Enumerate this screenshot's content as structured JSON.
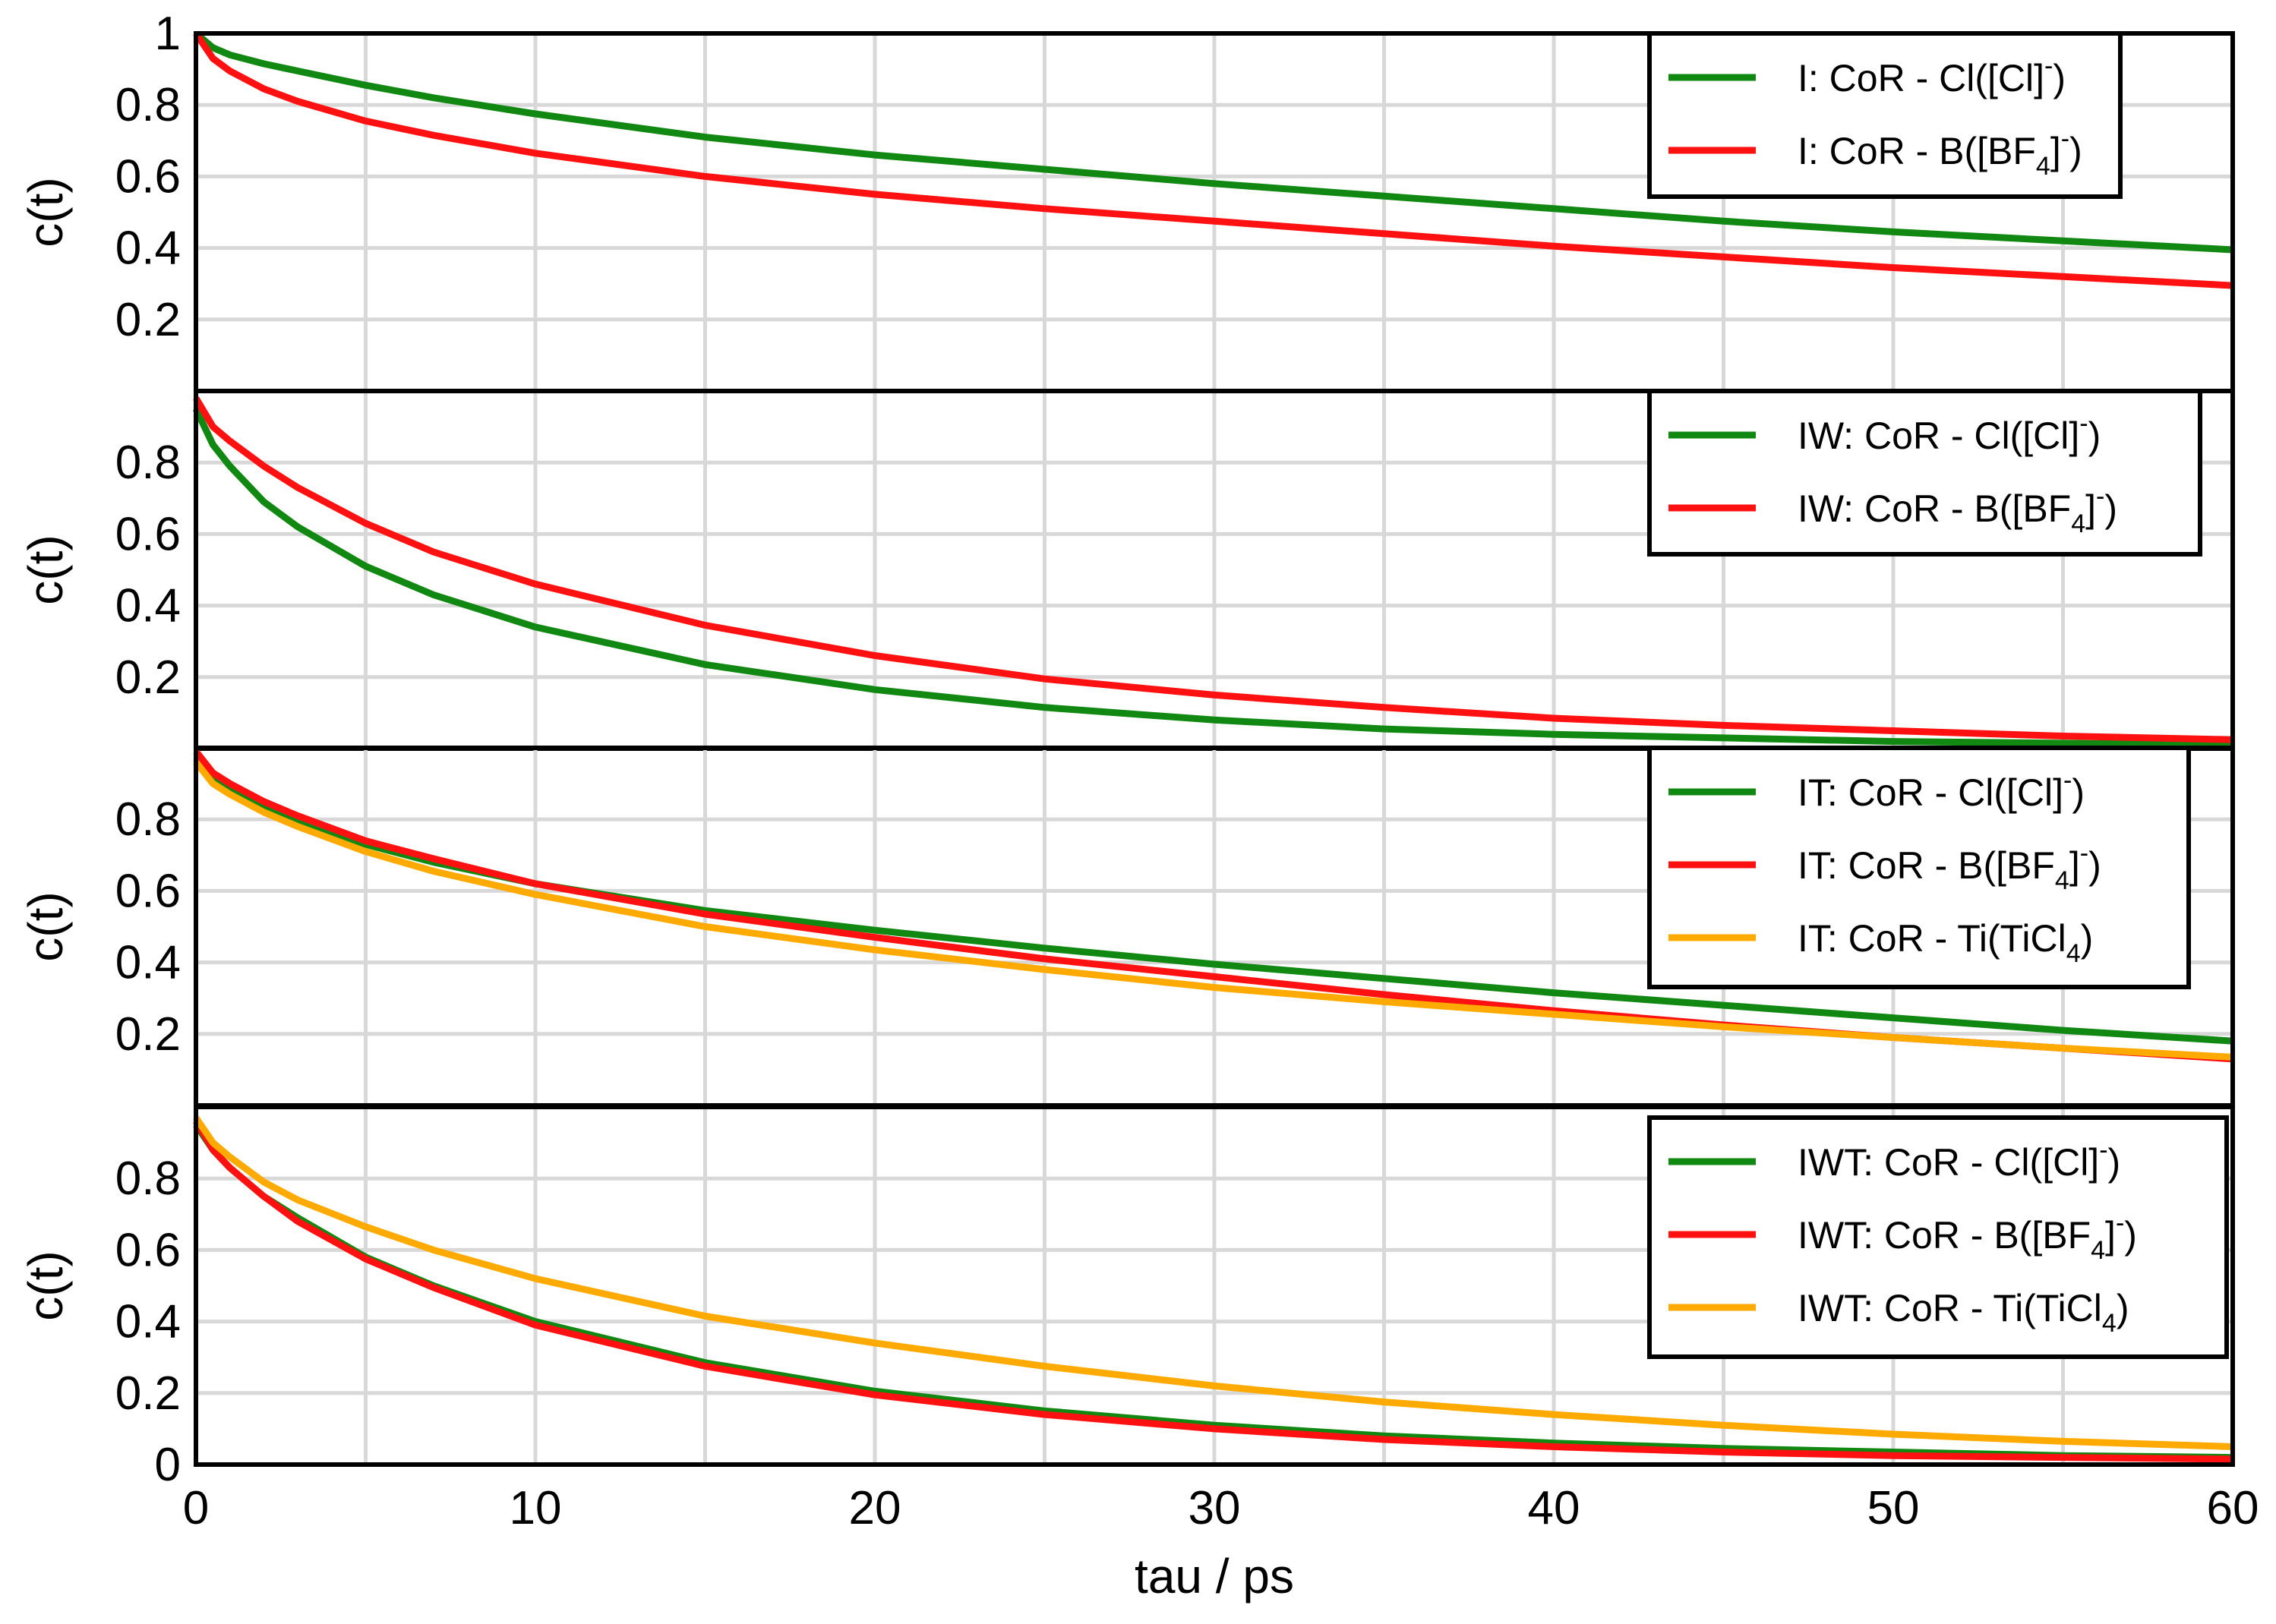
{
  "chart_data": [
    {
      "type": "line",
      "panel": "I",
      "ylabel": "c(t)",
      "xlim": [
        0,
        60
      ],
      "ylim": [
        0,
        1
      ],
      "yticks": [
        "0.2",
        "0.4",
        "0.6",
        "0.8",
        "1"
      ],
      "grid": true,
      "legend_position": "top-right",
      "series": [
        {
          "name": "I: CoR - Cl([Cl]⁻)",
          "label_main": "I: CoR - Cl([Cl]",
          "label_sup": "-",
          "label_tail": ")",
          "color": "#118811",
          "x": [
            0,
            0.5,
            1,
            2,
            3,
            5,
            7,
            10,
            15,
            20,
            25,
            30,
            35,
            40,
            45,
            50,
            55,
            60
          ],
          "y": [
            1.0,
            0.96,
            0.94,
            0.915,
            0.895,
            0.855,
            0.82,
            0.775,
            0.71,
            0.66,
            0.62,
            0.58,
            0.545,
            0.51,
            0.475,
            0.445,
            0.42,
            0.395
          ]
        },
        {
          "name": "I: CoR - B([BF₄]⁻)",
          "label_main": "I: CoR - B([BF",
          "label_sub": "4",
          "label_mid": "]",
          "label_sup": "-",
          "label_tail": ")",
          "color": "#ff1111",
          "x": [
            0,
            0.5,
            1,
            2,
            3,
            5,
            7,
            10,
            15,
            20,
            25,
            30,
            35,
            40,
            45,
            50,
            55,
            60
          ],
          "y": [
            1.0,
            0.93,
            0.895,
            0.845,
            0.81,
            0.755,
            0.715,
            0.665,
            0.6,
            0.55,
            0.51,
            0.475,
            0.44,
            0.405,
            0.375,
            0.345,
            0.32,
            0.295
          ]
        }
      ]
    },
    {
      "type": "line",
      "panel": "IW",
      "ylabel": "c(t)",
      "xlim": [
        0,
        60
      ],
      "ylim": [
        0,
        1
      ],
      "yticks": [
        "0.2",
        "0.4",
        "0.6",
        "0.8"
      ],
      "grid": true,
      "legend_position": "top-right",
      "series": [
        {
          "name": "IW: CoR - Cl([Cl]⁻)",
          "label_main": "IW: CoR - Cl([Cl]",
          "label_sup": "-",
          "label_tail": ")",
          "color": "#118811",
          "x": [
            0,
            0.5,
            1,
            2,
            3,
            5,
            7,
            10,
            15,
            20,
            25,
            30,
            35,
            40,
            45,
            50,
            55,
            60
          ],
          "y": [
            0.95,
            0.85,
            0.79,
            0.69,
            0.62,
            0.51,
            0.43,
            0.34,
            0.235,
            0.165,
            0.115,
            0.08,
            0.055,
            0.04,
            0.03,
            0.02,
            0.015,
            0.01
          ]
        },
        {
          "name": "IW: CoR - B([BF₄]⁻)",
          "label_main": "IW: CoR - B([BF",
          "label_sub": "4",
          "label_mid": "]",
          "label_sup": "-",
          "label_tail": ")",
          "color": "#ff1111",
          "x": [
            0,
            0.5,
            1,
            2,
            3,
            5,
            7,
            10,
            15,
            20,
            25,
            30,
            35,
            40,
            45,
            50,
            55,
            60
          ],
          "y": [
            0.98,
            0.9,
            0.86,
            0.79,
            0.73,
            0.63,
            0.55,
            0.46,
            0.345,
            0.26,
            0.195,
            0.15,
            0.115,
            0.085,
            0.065,
            0.05,
            0.035,
            0.025
          ]
        }
      ]
    },
    {
      "type": "line",
      "panel": "IT",
      "ylabel": "c(t)",
      "xlim": [
        0,
        60
      ],
      "ylim": [
        0,
        1
      ],
      "yticks": [
        "0.2",
        "0.4",
        "0.6",
        "0.8"
      ],
      "grid": true,
      "legend_position": "top-right",
      "series": [
        {
          "name": "IT: CoR - Cl([Cl]⁻)",
          "label_main": "IT: CoR - Cl([Cl]",
          "label_sup": "-",
          "label_tail": ")",
          "color": "#118811",
          "x": [
            0,
            0.5,
            1,
            2,
            3,
            5,
            7,
            10,
            15,
            20,
            25,
            30,
            35,
            40,
            45,
            50,
            55,
            60
          ],
          "y": [
            0.97,
            0.91,
            0.88,
            0.83,
            0.79,
            0.73,
            0.68,
            0.62,
            0.545,
            0.49,
            0.44,
            0.395,
            0.355,
            0.315,
            0.28,
            0.245,
            0.21,
            0.18
          ]
        },
        {
          "name": "IT: CoR - B([BF₄]⁻)",
          "label_main": "IT: CoR - B([BF",
          "label_sub": "4",
          "label_mid": "]",
          "label_sup": "-",
          "label_tail": ")",
          "color": "#ff1111",
          "x": [
            0,
            0.5,
            1,
            2,
            3,
            5,
            7,
            10,
            15,
            20,
            25,
            30,
            35,
            40,
            45,
            50,
            55,
            60
          ],
          "y": [
            0.99,
            0.93,
            0.9,
            0.85,
            0.81,
            0.74,
            0.69,
            0.62,
            0.535,
            0.47,
            0.41,
            0.36,
            0.31,
            0.265,
            0.225,
            0.19,
            0.16,
            0.13
          ]
        },
        {
          "name": "IT: CoR - Ti(TiCl₄)",
          "label_main": "IT: CoR - Ti(TiCl",
          "label_sub": "4",
          "label_tail": ")",
          "color": "#ffaa00",
          "x": [
            0,
            0.5,
            1,
            2,
            3,
            5,
            7,
            10,
            15,
            20,
            25,
            30,
            35,
            40,
            45,
            50,
            55,
            60
          ],
          "y": [
            0.96,
            0.9,
            0.87,
            0.82,
            0.78,
            0.71,
            0.655,
            0.59,
            0.5,
            0.435,
            0.38,
            0.33,
            0.29,
            0.255,
            0.22,
            0.19,
            0.16,
            0.135
          ]
        }
      ]
    },
    {
      "type": "line",
      "panel": "IWT",
      "ylabel": "c(t)",
      "xlabel": "tau / ps",
      "xlim": [
        0,
        60
      ],
      "ylim": [
        0,
        1
      ],
      "xticks": [
        "0",
        "10",
        "20",
        "30",
        "40",
        "50",
        "60"
      ],
      "yticks": [
        "0",
        "0.2",
        "0.4",
        "0.6",
        "0.8"
      ],
      "grid": true,
      "legend_position": "top-right",
      "series": [
        {
          "name": "IWT: CoR - Cl([Cl]⁻)",
          "label_main": "IWT: CoR - Cl([Cl]",
          "label_sup": "-",
          "label_tail": ")",
          "color": "#118811",
          "x": [
            0,
            0.5,
            1,
            2,
            3,
            5,
            7,
            10,
            15,
            20,
            25,
            30,
            35,
            40,
            45,
            50,
            55,
            60
          ],
          "y": [
            0.95,
            0.88,
            0.83,
            0.75,
            0.69,
            0.58,
            0.5,
            0.4,
            0.285,
            0.205,
            0.15,
            0.11,
            0.08,
            0.06,
            0.045,
            0.035,
            0.025,
            0.02
          ]
        },
        {
          "name": "IWT: CoR - B([BF₄]⁻)",
          "label_main": "IWT: CoR - B([BF",
          "label_sub": "4",
          "label_mid": "]",
          "label_sup": "-",
          "label_tail": ")",
          "color": "#ff1111",
          "x": [
            0,
            0.5,
            1,
            2,
            3,
            5,
            7,
            10,
            15,
            20,
            25,
            30,
            35,
            40,
            45,
            50,
            55,
            60
          ],
          "y": [
            0.96,
            0.88,
            0.83,
            0.75,
            0.68,
            0.575,
            0.495,
            0.39,
            0.275,
            0.195,
            0.14,
            0.1,
            0.07,
            0.05,
            0.035,
            0.025,
            0.02,
            0.015
          ]
        },
        {
          "name": "IWT: CoR - Ti(TiCl₄)",
          "label_main": "IWT: CoR - Ti(TiCl",
          "label_sub": "4",
          "label_tail": ")",
          "color": "#ffaa00",
          "x": [
            0,
            0.5,
            1,
            2,
            3,
            5,
            7,
            10,
            15,
            20,
            25,
            30,
            35,
            40,
            45,
            50,
            55,
            60
          ],
          "y": [
            0.97,
            0.9,
            0.86,
            0.79,
            0.74,
            0.665,
            0.6,
            0.52,
            0.415,
            0.34,
            0.275,
            0.22,
            0.175,
            0.14,
            0.11,
            0.085,
            0.065,
            0.05
          ]
        }
      ]
    }
  ]
}
